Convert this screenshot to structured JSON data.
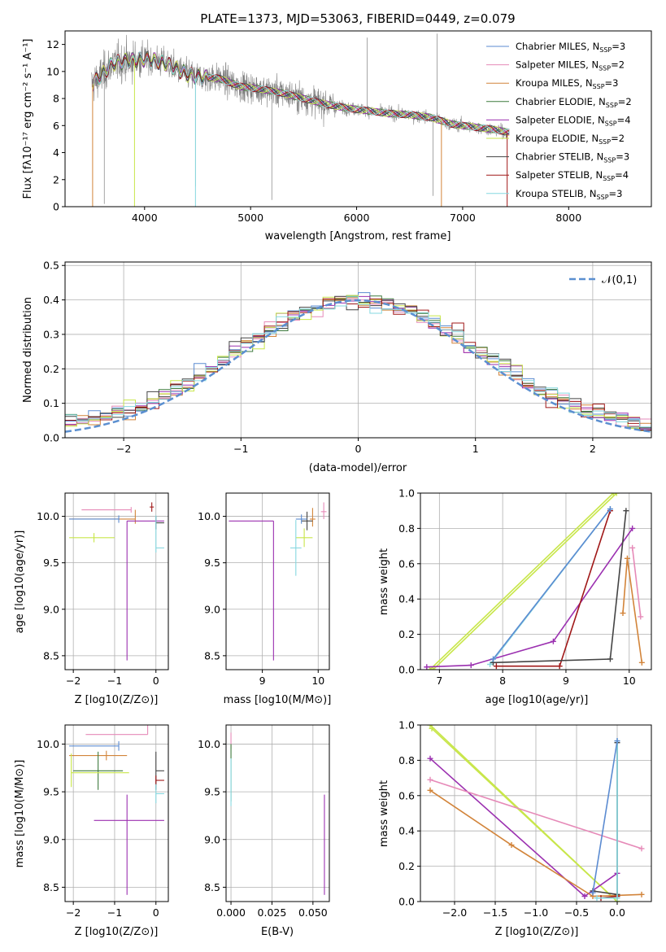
{
  "title": "PLATE=1373, MJD=53063, FIBERID=0449, z=0.079",
  "colors": {
    "Chabrier MILES": "#5b8bd1",
    "Salpeter MILES": "#e68ab8",
    "Kroupa MILES": "#d2843a",
    "Chabrier ELODIE": "#3d7a3d",
    "Salpeter ELODIE": "#9b30b0",
    "Kroupa ELODIE": "#c8e64a",
    "Chabrier STELIB": "#444444",
    "Salpeter STELIB": "#a01818",
    "Kroupa STELIB": "#86d8e0",
    "data": "#808080",
    "normal": "#5b8fd0"
  },
  "chart_data": [
    {
      "type": "line",
      "name": "spectrum",
      "xlabel": "wavelength [Angstrom, rest frame]",
      "ylabel": "Flux [f_λ 10^-17 erg cm^-2 s^-1 A^-1]",
      "xlim": [
        3250,
        8780
      ],
      "ylim": [
        0,
        13
      ],
      "xticks": [
        "4000",
        "5000",
        "6000",
        "7000",
        "8000"
      ],
      "yticks": [
        "0",
        "2",
        "4",
        "6",
        "8",
        "10",
        "12"
      ],
      "legend_position": "top-right",
      "legend": [
        {
          "name": "Chabrier MILES",
          "nssp": "3"
        },
        {
          "name": "Salpeter MILES",
          "nssp": "2"
        },
        {
          "name": "Kroupa MILES",
          "nssp": "3"
        },
        {
          "name": "Chabrier ELODIE",
          "nssp": "2"
        },
        {
          "name": "Salpeter ELODIE",
          "nssp": "4"
        },
        {
          "name": "Kroupa ELODIE",
          "nssp": "2"
        },
        {
          "name": "Chabrier STELIB",
          "nssp": "3"
        },
        {
          "name": "Salpeter STELIB",
          "nssp": "4"
        },
        {
          "name": "Kroupa STELIB",
          "nssp": "3"
        }
      ],
      "continuum": [
        [
          3500,
          9.0
        ],
        [
          3600,
          9.8
        ],
        [
          3700,
          10.6
        ],
        [
          3850,
          10.8
        ],
        [
          4000,
          10.9
        ],
        [
          4100,
          10.8
        ],
        [
          4200,
          10.6
        ],
        [
          4300,
          10.2
        ],
        [
          4400,
          9.8
        ],
        [
          4500,
          9.6
        ],
        [
          4700,
          9.5
        ],
        [
          4900,
          8.9
        ],
        [
          5100,
          8.7
        ],
        [
          5300,
          8.4
        ],
        [
          5500,
          8.0
        ],
        [
          5700,
          7.6
        ],
        [
          5900,
          7.3
        ],
        [
          6100,
          7.1
        ],
        [
          6300,
          6.9
        ],
        [
          6500,
          6.8
        ],
        [
          6700,
          6.6
        ],
        [
          6900,
          6.1
        ],
        [
          7100,
          5.9
        ],
        [
          7300,
          5.7
        ],
        [
          7500,
          5.4
        ],
        [
          7700,
          5.2
        ],
        [
          7900,
          5.0
        ],
        [
          8100,
          4.8
        ],
        [
          8300,
          4.5
        ],
        [
          8500,
          4.2
        ]
      ]
    },
    {
      "type": "histogram",
      "name": "residuals",
      "xlabel": "(data-model)/error",
      "ylabel": "Normed distribution",
      "xlim": [
        -2.5,
        2.5
      ],
      "ylim": [
        0,
        0.51
      ],
      "xticks": [
        "-2",
        "-1",
        "0",
        "1",
        "2"
      ],
      "yticks": [
        "0.0",
        "0.1",
        "0.2",
        "0.3",
        "0.4",
        "0.5"
      ],
      "bin_width": 0.1,
      "grid": true,
      "reference": {
        "label": "𝒩(0,1)",
        "mean": 0,
        "sigma": 1
      }
    },
    {
      "type": "errorbar",
      "name": "age-vs-Z",
      "xlabel": "Z [log10(Z/Z⊙)]",
      "ylabel": "age  [log10(age/yr)]",
      "xlim": [
        -2.2,
        0.3
      ],
      "ylim": [
        8.35,
        10.25
      ],
      "xticks": [
        "-2",
        "-1",
        "0"
      ],
      "yticks": [
        "8.5",
        "9.0",
        "9.5",
        "10.0"
      ],
      "points": [
        {
          "series": "Salpeter MILES",
          "x": -0.6,
          "xerr": [
            1.2,
            0.0
          ],
          "y": 10.07,
          "yerr": [
            0.03,
            0.03
          ]
        },
        {
          "series": "Kroupa MILES",
          "x": -0.5,
          "xerr": [
            1.6,
            0.0
          ],
          "y": 9.97,
          "yerr": [
            0.05,
            0.1
          ]
        },
        {
          "series": "Chabrier MILES",
          "x": -0.9,
          "xerr": [
            1.2,
            0.0
          ],
          "y": 9.97,
          "yerr": [
            0.04,
            0.04
          ]
        },
        {
          "series": "Salpeter ELODIE",
          "x": -0.7,
          "xerr": [
            0.0,
            0.9
          ],
          "y": 9.95,
          "yerr": [
            1.5,
            0.0
          ]
        },
        {
          "series": "Kroupa ELODIE",
          "x": -1.5,
          "xerr": [
            0.6,
            0.5
          ],
          "y": 9.77,
          "yerr": [
            0.05,
            0.05
          ]
        },
        {
          "series": "Chabrier STELIB",
          "x": 0.0,
          "xerr": [
            0.0,
            0.2
          ],
          "y": 9.93,
          "yerr": [
            0.07,
            0.07
          ]
        },
        {
          "series": "Kroupa STELIB",
          "x": 0.0,
          "xerr": [
            0.0,
            0.2
          ],
          "y": 9.66,
          "yerr": [
            0.05,
            0.35
          ]
        },
        {
          "series": "Salpeter STELIB",
          "x": -0.1,
          "xerr": [
            0.05,
            0.05
          ],
          "y": 10.1,
          "yerr": [
            0.05,
            0.05
          ]
        }
      ]
    },
    {
      "type": "errorbar",
      "name": "age-vs-mass",
      "xlabel": "mass [log10(M/M⊙)]",
      "ylabel": "",
      "xlim": [
        8.35,
        10.2
      ],
      "ylim": [
        8.35,
        10.25
      ],
      "xticks": [
        "9",
        "10"
      ],
      "yticks": [
        "8.5",
        "9.0",
        "9.5",
        "10.0"
      ],
      "points": [
        {
          "series": "Salpeter ELODIE",
          "x": 9.2,
          "xerr": [
            0.8,
            0.0
          ],
          "y": 9.95,
          "yerr": [
            1.5,
            0.0
          ]
        },
        {
          "series": "Salpeter MILES",
          "x": 10.1,
          "xerr": [
            0.05,
            0.05
          ],
          "y": 10.05,
          "yerr": [
            0.08,
            0.1
          ]
        },
        {
          "series": "Kroupa MILES",
          "x": 9.9,
          "xerr": [
            0.05,
            0.05
          ],
          "y": 9.97,
          "yerr": [
            0.08,
            0.12
          ]
        },
        {
          "series": "Kroupa ELODIE",
          "x": 9.75,
          "xerr": [
            0.15,
            0.15
          ],
          "y": 9.77,
          "yerr": [
            0.1,
            0.1
          ]
        },
        {
          "series": "Chabrier STELIB",
          "x": 9.8,
          "xerr": [
            0.1,
            0.1
          ],
          "y": 9.95,
          "yerr": [
            0.1,
            0.1
          ]
        },
        {
          "series": "Kroupa STELIB",
          "x": 9.6,
          "xerr": [
            0.1,
            0.1
          ],
          "y": 9.66,
          "yerr": [
            0.3,
            0.3
          ]
        },
        {
          "series": "Chabrier MILES",
          "x": 9.7,
          "xerr": [
            0.1,
            0.1
          ],
          "y": 9.97,
          "yerr": [
            0.05,
            0.05
          ]
        }
      ]
    },
    {
      "type": "line",
      "name": "mass-weight-vs-age",
      "xlabel": "age  [log10(age/yr)]",
      "ylabel": "mass weight",
      "xlim": [
        6.7,
        10.35
      ],
      "ylim": [
        0,
        1.0
      ],
      "xticks": [
        "7",
        "8",
        "9",
        "10"
      ],
      "yticks": [
        "0.0",
        "0.2",
        "0.4",
        "0.6",
        "0.8",
        "1.0"
      ],
      "grid": true,
      "series": [
        {
          "series": "Kroupa ELODIE",
          "x": [
            6.9,
            9.8
          ],
          "y": [
            0.0,
            1.0
          ]
        },
        {
          "series": "Kroupa ELODIE",
          "x": [
            6.85,
            9.75
          ],
          "y": [
            0.0,
            1.0
          ]
        },
        {
          "series": "Salpeter ELODIE",
          "x": [
            6.8,
            7.5,
            8.8,
            10.05
          ],
          "y": [
            0.015,
            0.025,
            0.16,
            0.8
          ]
        },
        {
          "series": "Kroupa STELIB",
          "x": [
            7.8,
            9.7
          ],
          "y": [
            0.03,
            0.91
          ]
        },
        {
          "series": "Salpeter STELIB",
          "x": [
            7.9,
            8.9,
            9.7
          ],
          "y": [
            0.02,
            0.02,
            0.9
          ]
        },
        {
          "series": "Chabrier STELIB",
          "x": [
            7.85,
            9.7,
            9.95
          ],
          "y": [
            0.04,
            0.06,
            0.9
          ]
        },
        {
          "series": "Kroupa MILES",
          "x": [
            9.9,
            9.97,
            10.2
          ],
          "y": [
            0.32,
            0.63,
            0.04
          ]
        },
        {
          "series": "Salpeter MILES",
          "x": [
            10.05,
            10.18
          ],
          "y": [
            0.69,
            0.3
          ]
        },
        {
          "series": "Chabrier MILES",
          "x": [
            7.85,
            9.7
          ],
          "y": [
            0.06,
            0.91
          ]
        }
      ]
    },
    {
      "type": "errorbar",
      "name": "mass-vs-Z",
      "xlabel": "Z [log10(Z/Z⊙)]",
      "ylabel": "mass [log10(M/M⊙)]",
      "xlim": [
        -2.2,
        0.3
      ],
      "ylim": [
        8.35,
        10.2
      ],
      "xticks": [
        "-2",
        "-1",
        "0"
      ],
      "yticks": [
        "8.5",
        "9.0",
        "9.5",
        "10.0"
      ],
      "points": [
        {
          "series": "Salpeter MILES",
          "x": -0.2,
          "xerr": [
            1.5,
            0.0
          ],
          "y": 10.1,
          "yerr": [
            0.0,
            0.1
          ]
        },
        {
          "series": "Chabrier MILES",
          "x": -0.9,
          "xerr": [
            1.2,
            0.0
          ],
          "y": 9.98,
          "yerr": [
            0.05,
            0.05
          ]
        },
        {
          "series": "Kroupa MILES",
          "x": -1.2,
          "xerr": [
            0.9,
            0.5
          ],
          "y": 9.88,
          "yerr": [
            0.05,
            0.05
          ]
        },
        {
          "series": "Chabrier ELODIE",
          "x": -1.4,
          "xerr": [
            0.6,
            0.6
          ],
          "y": 9.72,
          "yerr": [
            0.2,
            0.2
          ]
        },
        {
          "series": "Kroupa ELODIE",
          "x": -2.05,
          "xerr": [
            0.0,
            1.4
          ],
          "y": 9.7,
          "yerr": [
            0.15,
            0.2
          ]
        },
        {
          "series": "Chabrier STELIB",
          "x": 0.0,
          "xerr": [
            0.0,
            0.2
          ],
          "y": 9.72,
          "yerr": [
            0.2,
            0.2
          ]
        },
        {
          "series": "Salpeter STELIB",
          "x": 0.0,
          "xerr": [
            0.0,
            0.2
          ],
          "y": 9.62,
          "yerr": [
            0.05,
            0.05
          ]
        },
        {
          "series": "Kroupa STELIB",
          "x": 0.0,
          "xerr": [
            0.0,
            0.2
          ],
          "y": 9.48,
          "yerr": [
            0.1,
            0.1
          ]
        },
        {
          "series": "Salpeter ELODIE",
          "x": -0.7,
          "xerr": [
            0.8,
            0.9
          ],
          "y": 9.2,
          "yerr": [
            0.78,
            0.27
          ]
        }
      ]
    },
    {
      "type": "errorbar",
      "name": "mass-vs-EBV",
      "xlabel": "E(B-V)",
      "ylabel": "",
      "xlim": [
        -0.003,
        0.06
      ],
      "ylim": [
        8.35,
        10.2
      ],
      "xticks": [
        "0.000",
        "0.025",
        "0.050"
      ],
      "yticks": [
        "8.5",
        "9.0",
        "9.5",
        "10.0"
      ],
      "points": [
        {
          "series": "Salpeter MILES",
          "x": 0.0,
          "xerr": [
            0,
            0
          ],
          "y": 10.0,
          "yerr": [
            0.05,
            0.12
          ]
        },
        {
          "series": "Chabrier ELODIE",
          "x": 0.0,
          "xerr": [
            0,
            0
          ],
          "y": 9.7,
          "yerr": [
            0.3,
            0.3
          ]
        },
        {
          "series": "Kroupa STELIB",
          "x": 0.0,
          "xerr": [
            0,
            0
          ],
          "y": 9.6,
          "yerr": [
            0.25,
            0.25
          ]
        },
        {
          "series": "Salpeter ELODIE",
          "x": 0.057,
          "xerr": [
            0,
            0
          ],
          "y": 9.2,
          "yerr": [
            0.78,
            0.27
          ]
        }
      ]
    },
    {
      "type": "line",
      "name": "mass-weight-vs-Z",
      "xlabel": "Z [log10(Z/Z⊙)]",
      "ylabel": "mass weight",
      "xlim": [
        -2.42,
        0.42
      ],
      "ylim": [
        0,
        1.0
      ],
      "xticks": [
        "-2.0",
        "-1.5",
        "-1.0",
        "-0.5",
        "0.0"
      ],
      "yticks": [
        "0.0",
        "0.2",
        "0.4",
        "0.6",
        "0.8",
        "1.0"
      ],
      "grid": true,
      "series": [
        {
          "series": "Kroupa ELODIE",
          "x": [
            -2.3,
            0.0
          ],
          "y": [
            1.0,
            0.0
          ]
        },
        {
          "series": "Kroupa ELODIE",
          "x": [
            -2.28,
            0.0
          ],
          "y": [
            0.98,
            0.0
          ]
        },
        {
          "series": "Salpeter ELODIE",
          "x": [
            -2.3,
            -0.4,
            0.0
          ],
          "y": [
            0.81,
            0.03,
            0.16
          ]
        },
        {
          "series": "Salpeter MILES",
          "x": [
            -2.3,
            0.3
          ],
          "y": [
            0.69,
            0.3
          ]
        },
        {
          "series": "Kroupa MILES",
          "x": [
            -2.3,
            -1.3,
            -0.3,
            0.3
          ],
          "y": [
            0.63,
            0.32,
            0.03,
            0.04
          ]
        },
        {
          "series": "Chabrier STELIB",
          "x": [
            -0.3,
            0.0,
            0.0
          ],
          "y": [
            0.06,
            0.04,
            0.9
          ]
        },
        {
          "series": "Salpeter STELIB",
          "x": [
            -0.2,
            0.0
          ],
          "y": [
            0.02,
            0.03
          ]
        },
        {
          "series": "Kroupa STELIB",
          "x": [
            -0.25,
            0.0,
            0.0
          ],
          "y": [
            0.02,
            0.02,
            0.91
          ]
        },
        {
          "series": "Chabrier MILES",
          "x": [
            -0.3,
            0.0
          ],
          "y": [
            0.05,
            0.91
          ]
        }
      ]
    }
  ]
}
